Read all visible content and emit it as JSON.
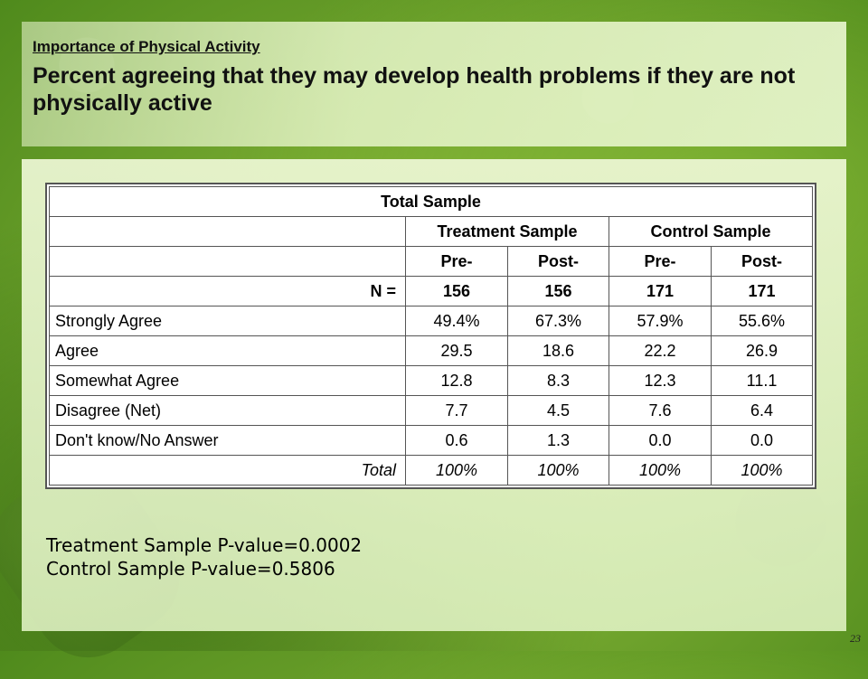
{
  "header": {
    "subtitle": "Importance of Physical Activity",
    "title": "Percent agreeing that they may develop health problems if they are not physically active"
  },
  "table": {
    "title": "Total Sample",
    "groups": [
      "Treatment Sample",
      "Control Sample"
    ],
    "subheaders": [
      "Pre-",
      "Post-",
      "Pre-",
      "Post-"
    ],
    "n_label": "N =",
    "n_values": [
      "156",
      "156",
      "171",
      "171"
    ],
    "rows": [
      {
        "label": "Strongly Agree",
        "values": [
          "49.4%",
          "67.3%",
          "57.9%",
          "55.6%"
        ]
      },
      {
        "label": "Agree",
        "values": [
          "29.5",
          "18.6",
          "22.2",
          "26.9"
        ]
      },
      {
        "label": "Somewhat Agree",
        "values": [
          "12.8",
          "8.3",
          "12.3",
          "11.1"
        ]
      },
      {
        "label": "Disagree (Net)",
        "values": [
          "7.7",
          "4.5",
          "7.6",
          "6.4"
        ]
      },
      {
        "label": "Don't know/No Answer",
        "values": [
          "0.6",
          "1.3",
          "0.0",
          "0.0"
        ]
      }
    ],
    "total": {
      "label": "Total",
      "values": [
        "100%",
        "100%",
        "100%",
        "100%"
      ]
    }
  },
  "pvalues": [
    "Treatment Sample P-value=0.0002",
    "Control Sample P-value=0.5806"
  ],
  "page_number": "23",
  "colors": {
    "background_green": "#6ea22c",
    "panel": "#e6f5c8"
  }
}
